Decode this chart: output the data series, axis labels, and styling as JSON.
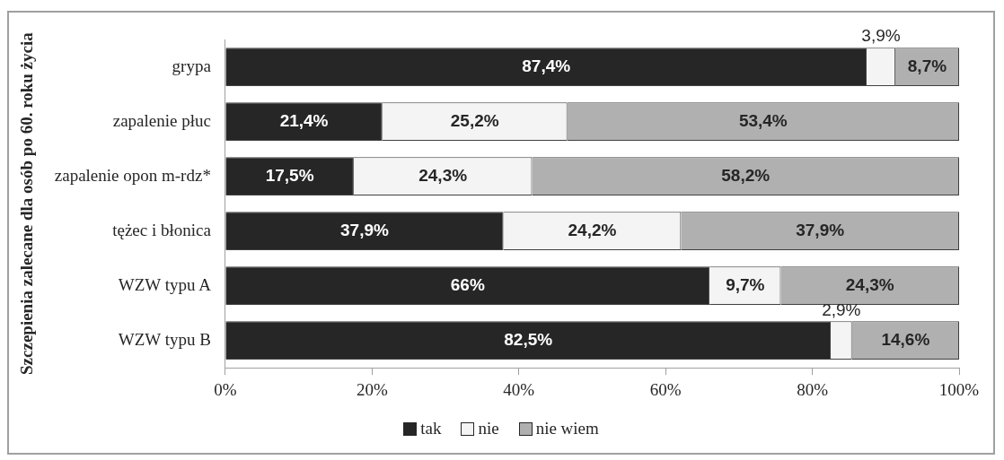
{
  "chart_data": {
    "type": "bar",
    "orientation": "horizontal",
    "stacked": true,
    "ylabel": "Szczepienia zalecane dla osób po 60. roku życia",
    "categories": [
      "grypa",
      "zapalenie płuc",
      "zapalenie opon m-rdz*",
      "tężec i błonica",
      "WZW typu A",
      "WZW typu B"
    ],
    "series": [
      {
        "name": "tak",
        "color": "#262626",
        "values": [
          87.4,
          21.4,
          17.5,
          37.9,
          66,
          82.5
        ],
        "value_labels": [
          "87,4%",
          "21,4%",
          "17,5%",
          "37,9%",
          "66%",
          "82,5%"
        ]
      },
      {
        "name": "nie",
        "color": "#f4f4f4",
        "values": [
          3.9,
          25.2,
          24.3,
          24.2,
          9.7,
          2.9
        ],
        "value_labels": [
          "3,9%",
          "25,2%",
          "24,3%",
          "24,2%",
          "9,7%",
          "2,9%"
        ]
      },
      {
        "name": "nie wiem",
        "color": "#b0b0b0",
        "values": [
          8.7,
          53.4,
          58.2,
          37.9,
          24.3,
          14.6
        ],
        "value_labels": [
          "8,7%",
          "53,4%",
          "58,2%",
          "37,9%",
          "24,3%",
          "14,6%"
        ]
      }
    ],
    "xlim": [
      0,
      100
    ],
    "xticks": [
      {
        "value": 0,
        "label": "0%"
      },
      {
        "value": 20,
        "label": "20%"
      },
      {
        "value": 40,
        "label": "40%"
      },
      {
        "value": 60,
        "label": "60%"
      },
      {
        "value": 80,
        "label": "80%"
      },
      {
        "value": 100,
        "label": "100%"
      }
    ],
    "grid": false,
    "legend": "bottom"
  }
}
